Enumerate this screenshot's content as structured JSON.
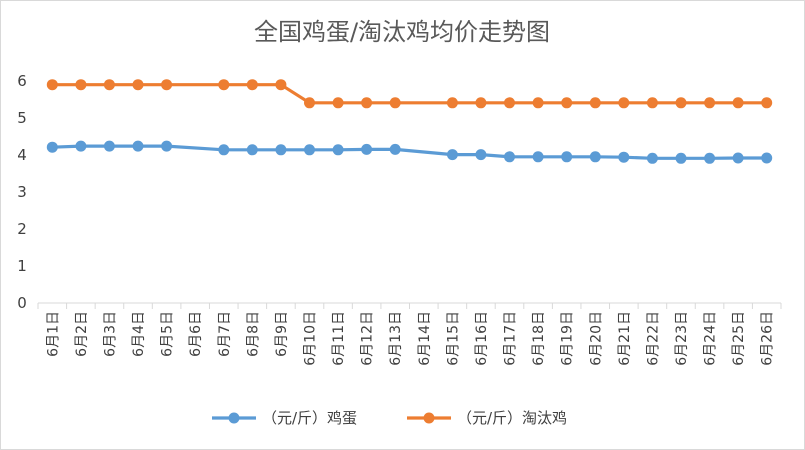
{
  "chart_data": {
    "type": "line",
    "title": "全国鸡蛋/淘汰鸡均价走势图",
    "xlabel": "",
    "ylabel": "",
    "ylim": [
      0,
      6
    ],
    "yticks": [
      "0",
      "1",
      "2",
      "3",
      "4",
      "5",
      "6"
    ],
    "grid": false,
    "legend_position": "bottom",
    "categories": [
      "6月1日",
      "6月2日",
      "6月3日",
      "6月4日",
      "6月5日",
      "6月6日",
      "6月7日",
      "6月8日",
      "6月9日",
      "6月10日",
      "6月11日",
      "6月12日",
      "6月13日",
      "6月14日",
      "6月15日",
      "6月16日",
      "6月17日",
      "6月18日",
      "6月19日",
      "6月20日",
      "6月21日",
      "6月22日",
      "6月23日",
      "6月24日",
      "6月25日",
      "6月26日"
    ],
    "series": [
      {
        "name": "（元/斤）鸡蛋",
        "color": "#5B9BD5",
        "values": [
          4.21,
          4.24,
          4.24,
          4.24,
          4.24,
          null,
          4.14,
          4.14,
          4.14,
          4.14,
          4.14,
          4.15,
          4.15,
          null,
          4.01,
          4.01,
          3.95,
          3.95,
          3.95,
          3.95,
          3.94,
          3.91,
          3.91,
          3.91,
          3.92,
          3.92
        ]
      },
      {
        "name": "（元/斤）淘汰鸡",
        "color": "#ED7D31",
        "values": [
          5.9,
          5.9,
          5.9,
          5.9,
          5.9,
          null,
          5.9,
          5.9,
          5.9,
          5.41,
          5.41,
          5.41,
          5.41,
          null,
          5.41,
          5.41,
          5.41,
          5.41,
          5.41,
          5.41,
          5.41,
          5.41,
          5.41,
          5.41,
          5.41,
          5.41
        ]
      }
    ]
  }
}
